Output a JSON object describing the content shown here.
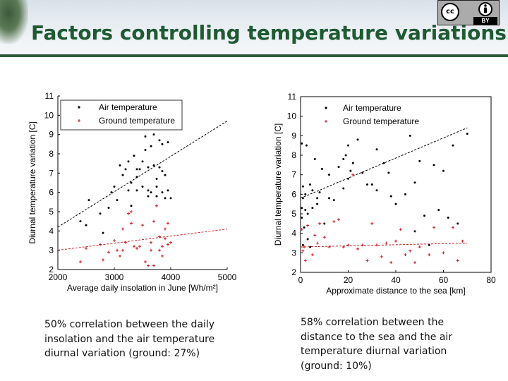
{
  "slide": {
    "title": "Factors controlling temperature variations",
    "license": {
      "icon": "cc-by-icon",
      "cc_text": "cc",
      "by_text": "BY"
    }
  },
  "captions": {
    "left": "50% correlation between the daily insolation and the air temperature diurnal variation (ground: 27%)",
    "right": "58% correlation between the distance to the sea and the air temperature diurnal variation (ground: 10%)"
  },
  "colors": {
    "air": "#000000",
    "ground": "#d62020",
    "title": "#1e5a32"
  },
  "chart_data": [
    {
      "type": "scatter",
      "xlabel": "Average daily insolation in June [Wh/m²]",
      "ylabel": "Diurnal temperature variation [C]",
      "xlim": [
        2000,
        5000
      ],
      "ylim": [
        2,
        11
      ],
      "xticks": [
        2000,
        3000,
        4000,
        5000
      ],
      "yticks": [
        2,
        3,
        4,
        5,
        6,
        7,
        8,
        9,
        10,
        11
      ],
      "grid": false,
      "legend": "top-left",
      "series": [
        {
          "name": "Air temperature",
          "marker": "dot",
          "trend": [
            [
              2000,
              4.2
            ],
            [
              5000,
              9.7
            ]
          ],
          "points": [
            [
              2400,
              4.5
            ],
            [
              2500,
              4.3
            ],
            [
              2550,
              5.6
            ],
            [
              2750,
              4.9
            ],
            [
              2800,
              3.9
            ],
            [
              2900,
              5.2
            ],
            [
              2950,
              6.0
            ],
            [
              3000,
              6.3
            ],
            [
              3050,
              5.6
            ],
            [
              3100,
              7.4
            ],
            [
              3150,
              6.9
            ],
            [
              3200,
              7.2
            ],
            [
              3250,
              6.1
            ],
            [
              3300,
              5.3
            ],
            [
              3300,
              6.5
            ],
            [
              3350,
              7.9
            ],
            [
              3400,
              6.1
            ],
            [
              3400,
              6.8
            ],
            [
              3450,
              7.2
            ],
            [
              3500,
              6.3
            ],
            [
              3500,
              7.6
            ],
            [
              3550,
              8.2
            ],
            [
              3550,
              8.9
            ],
            [
              3600,
              7.3
            ],
            [
              3600,
              5.8
            ],
            [
              3650,
              6.0
            ],
            [
              3650,
              8.4
            ],
            [
              3700,
              9.0
            ],
            [
              3700,
              7.4
            ],
            [
              3750,
              5.8
            ],
            [
              3750,
              6.3
            ],
            [
              3750,
              6.7
            ],
            [
              3800,
              8.7
            ],
            [
              3800,
              9.3
            ],
            [
              3800,
              7.3
            ],
            [
              3850,
              7.1
            ],
            [
              3850,
              6.0
            ],
            [
              3900,
              5.7
            ],
            [
              3900,
              6.9
            ],
            [
              3950,
              8.6
            ],
            [
              3950,
              6.1
            ],
            [
              4000,
              5.7
            ],
            [
              3400,
              7.2
            ],
            [
              3250,
              7.6
            ],
            [
              3600,
              6.1
            ],
            [
              3850,
              8.5
            ]
          ]
        },
        {
          "name": "Ground temperature",
          "marker": "plus",
          "trend": [
            [
              2000,
              3.0
            ],
            [
              5000,
              4.1
            ]
          ],
          "points": [
            [
              2400,
              2.4
            ],
            [
              2500,
              3.1
            ],
            [
              2750,
              3.3
            ],
            [
              2800,
              2.5
            ],
            [
              2900,
              2.9
            ],
            [
              3000,
              3.5
            ],
            [
              3050,
              3.0
            ],
            [
              3100,
              2.7
            ],
            [
              3150,
              4.1
            ],
            [
              3200,
              3.4
            ],
            [
              3250,
              4.9
            ],
            [
              3300,
              5.0
            ],
            [
              3300,
              4.4
            ],
            [
              3350,
              3.2
            ],
            [
              3400,
              3.1
            ],
            [
              3500,
              4.3
            ],
            [
              3550,
              2.4
            ],
            [
              3600,
              2.2
            ],
            [
              3650,
              3.0
            ],
            [
              3650,
              3.4
            ],
            [
              3700,
              2.2
            ],
            [
              3700,
              4.5
            ],
            [
              3750,
              5.3
            ],
            [
              3800,
              3.7
            ],
            [
              3800,
              3.0
            ],
            [
              3850,
              2.7
            ],
            [
              3850,
              3.2
            ],
            [
              3900,
              4.1
            ],
            [
              3900,
              3.6
            ],
            [
              3950,
              4.4
            ],
            [
              3950,
              3.3
            ],
            [
              4000,
              3.4
            ],
            [
              3450,
              3.2
            ],
            [
              3150,
              3.0
            ]
          ]
        }
      ]
    },
    {
      "type": "scatter",
      "xlabel": "Approximate distance to the sea [km]",
      "ylabel": "Diurnal temperature variation [C]",
      "xlim": [
        0,
        80
      ],
      "ylim": [
        2,
        11
      ],
      "xticks": [
        0,
        20,
        40,
        60,
        80
      ],
      "yticks": [
        2,
        3,
        4,
        5,
        6,
        7,
        8,
        9,
        10,
        11
      ],
      "grid": false,
      "legend": "top-left",
      "series": [
        {
          "name": "Air temperature",
          "marker": "dot",
          "trend": [
            [
              0,
              5.8
            ],
            [
              70,
              9.4
            ]
          ],
          "points": [
            [
              0.5,
              8.6
            ],
            [
              0.5,
              4.8
            ],
            [
              0.5,
              5.3
            ],
            [
              1,
              5.8
            ],
            [
              1,
              6.4
            ],
            [
              1,
              3.4
            ],
            [
              1.5,
              4.3
            ],
            [
              2,
              5.2
            ],
            [
              2,
              6.0
            ],
            [
              2.5,
              8.5
            ],
            [
              3,
              5.0
            ],
            [
              3,
              3.7
            ],
            [
              4,
              3.3
            ],
            [
              4,
              6.5
            ],
            [
              5,
              5.3
            ],
            [
              5,
              6.2
            ],
            [
              6,
              7.8
            ],
            [
              7,
              5.8
            ],
            [
              7,
              5.5
            ],
            [
              8,
              6.1
            ],
            [
              9,
              7.3
            ],
            [
              10,
              4.5
            ],
            [
              12,
              5.8
            ],
            [
              12,
              7.0
            ],
            [
              14,
              5.7
            ],
            [
              16,
              7.4
            ],
            [
              18,
              7.8
            ],
            [
              18,
              6.3
            ],
            [
              19,
              8.0
            ],
            [
              20,
              8.5
            ],
            [
              20,
              6.8
            ],
            [
              21,
              7.2
            ],
            [
              22,
              7.6
            ],
            [
              24,
              8.8
            ],
            [
              26,
              7.1
            ],
            [
              28,
              6.5
            ],
            [
              30,
              6.5
            ],
            [
              32,
              8.3
            ],
            [
              32,
              6.2
            ],
            [
              35,
              7.6
            ],
            [
              37,
              7.1
            ],
            [
              38,
              5.9
            ],
            [
              40,
              5.5
            ],
            [
              44,
              6.0
            ],
            [
              46,
              9.0
            ],
            [
              48,
              4.1
            ],
            [
              48,
              6.6
            ],
            [
              50,
              7.7
            ],
            [
              52,
              4.9
            ],
            [
              56,
              7.5
            ],
            [
              58,
              5.2
            ],
            [
              60,
              7.2
            ],
            [
              62,
              4.8
            ],
            [
              64,
              8.5
            ],
            [
              66,
              4.5
            ],
            [
              70,
              9.1
            ],
            [
              54,
              3.4
            ]
          ]
        },
        {
          "name": "Ground temperature",
          "marker": "plus",
          "trend": [
            [
              0,
              3.3
            ],
            [
              70,
              3.5
            ]
          ],
          "points": [
            [
              0.5,
              4.2
            ],
            [
              1,
              3.1
            ],
            [
              1.5,
              3.3
            ],
            [
              2,
              2.6
            ],
            [
              3,
              4.4
            ],
            [
              5,
              2.9
            ],
            [
              6,
              3.9
            ],
            [
              7,
              3.5
            ],
            [
              8,
              4.5
            ],
            [
              10,
              3.8
            ],
            [
              12,
              3.3
            ],
            [
              14,
              4.6
            ],
            [
              16,
              4.7
            ],
            [
              18,
              3.3
            ],
            [
              20,
              3.4
            ],
            [
              22,
              7.0
            ],
            [
              24,
              3.2
            ],
            [
              26,
              3.4
            ],
            [
              28,
              2.6
            ],
            [
              30,
              4.5
            ],
            [
              32,
              3.4
            ],
            [
              34,
              2.8
            ],
            [
              36,
              3.5
            ],
            [
              38,
              2.5
            ],
            [
              40,
              3.6
            ],
            [
              42,
              4.2
            ],
            [
              44,
              2.9
            ],
            [
              46,
              3.1
            ],
            [
              48,
              2.5
            ],
            [
              50,
              3.3
            ],
            [
              54,
              2.9
            ],
            [
              56,
              4.3
            ],
            [
              60,
              3.0
            ],
            [
              64,
              4.3
            ],
            [
              66,
              2.6
            ],
            [
              68,
              3.6
            ]
          ]
        }
      ]
    }
  ]
}
